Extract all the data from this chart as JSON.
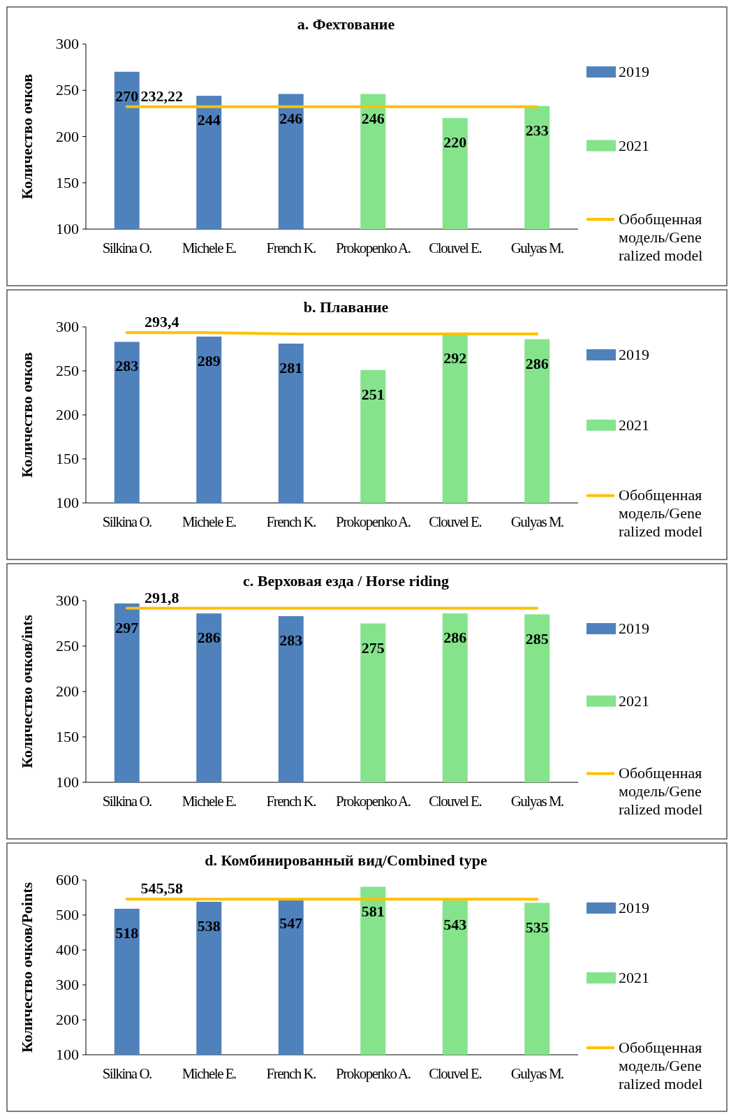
{
  "chart_data": [
    {
      "type": "bar",
      "title": "a. Фехтование",
      "ylabel": "Количество очков",
      "categories": [
        "Silkina O.",
        "Michele E.",
        "French K.",
        "Prokopenko A.",
        "Clouvel E.",
        "Gulyas M."
      ],
      "ylim": [
        100,
        300
      ],
      "yticks": [
        100,
        150,
        200,
        250,
        300
      ],
      "legend": "right",
      "series": [
        {
          "name": "2019",
          "color": "#4f81bd",
          "values": [
            270,
            244,
            246,
            null,
            null,
            null
          ],
          "value_labels": [
            "270",
            "244",
            "246",
            null,
            null,
            null
          ]
        },
        {
          "name": "2021",
          "color": "#85e38c",
          "values": [
            null,
            null,
            null,
            246,
            220,
            233
          ],
          "value_labels": [
            null,
            null,
            null,
            "246",
            "220",
            "233"
          ]
        },
        {
          "name": "Обобщенная модель/Generalized model",
          "type": "line",
          "color": "#ffc000",
          "values": [
            232.22,
            232.22,
            232.22,
            232.22,
            232.22,
            232.22
          ],
          "value_labels": [
            "232,22",
            null,
            null,
            null,
            null,
            null
          ]
        }
      ]
    },
    {
      "type": "bar",
      "title": "b. Плавание",
      "ylabel": "Количество очков",
      "categories": [
        "Silkina O.",
        "Michele E.",
        "French K.",
        "Prokopenko A.",
        "Clouvel E.",
        "Gulyas M."
      ],
      "ylim": [
        100,
        300
      ],
      "yticks": [
        100,
        150,
        200,
        250,
        300
      ],
      "legend": "right",
      "series": [
        {
          "name": "2019",
          "color": "#4f81bd",
          "values": [
            283,
            289,
            281,
            null,
            null,
            null
          ],
          "value_labels": [
            "283",
            "289",
            "281",
            null,
            null,
            null
          ]
        },
        {
          "name": "2021",
          "color": "#85e38c",
          "values": [
            null,
            null,
            null,
            251,
            292,
            286
          ],
          "value_labels": [
            null,
            null,
            null,
            "251",
            "292",
            "286"
          ]
        },
        {
          "name": "Обобщенная модель/Generalized model",
          "type": "line",
          "color": "#ffc000",
          "values": [
            293.4,
            293.4,
            292,
            292,
            292,
            292
          ],
          "value_labels": [
            "293,4",
            null,
            null,
            null,
            null,
            null
          ]
        }
      ]
    },
    {
      "type": "bar",
      "title": "c. Верховая езда / Horse riding",
      "ylabel": "Количество очков/ints",
      "categories": [
        "Silkina O.",
        "Michele E.",
        "French K.",
        "Prokopenko A.",
        "Clouvel E.",
        "Gulyas M."
      ],
      "ylim": [
        100,
        300
      ],
      "yticks": [
        100,
        150,
        200,
        250,
        300
      ],
      "legend": "right",
      "series": [
        {
          "name": "2019",
          "color": "#4f81bd",
          "values": [
            297,
            286,
            283,
            null,
            null,
            null
          ],
          "value_labels": [
            "297",
            "286",
            "283",
            null,
            null,
            null
          ]
        },
        {
          "name": "2021",
          "color": "#85e38c",
          "values": [
            null,
            null,
            null,
            275,
            286,
            285
          ],
          "value_labels": [
            null,
            null,
            null,
            "275",
            "286",
            "285"
          ]
        },
        {
          "name": "Обобщенная модель/Generalized model",
          "type": "line",
          "color": "#ffc000",
          "values": [
            291.8,
            291.8,
            291.8,
            291.8,
            291.8,
            291.8
          ],
          "value_labels": [
            "291,8",
            null,
            null,
            null,
            null,
            null
          ]
        }
      ]
    },
    {
      "type": "bar",
      "title": "d. Комбинированный  вид/Combined type",
      "ylabel": "Количество очков/Points",
      "categories": [
        "Silkina O.",
        "Michele E.",
        "French K.",
        "Prokopenko A.",
        "Clouvel E.",
        "Gulyas M."
      ],
      "ylim": [
        100,
        600
      ],
      "yticks": [
        100,
        200,
        300,
        400,
        500,
        600
      ],
      "legend": "right",
      "series": [
        {
          "name": "2019",
          "color": "#4f81bd",
          "values": [
            518,
            538,
            547,
            null,
            null,
            null
          ],
          "value_labels": [
            "518",
            "538",
            "547",
            null,
            null,
            null
          ]
        },
        {
          "name": "2021",
          "color": "#85e38c",
          "values": [
            null,
            null,
            null,
            581,
            543,
            535
          ],
          "value_labels": [
            null,
            null,
            null,
            "581",
            "543",
            "535"
          ]
        },
        {
          "name": "Обобщенная модель/Generalized model",
          "type": "line",
          "color": "#ffc000",
          "values": [
            545.58,
            545.58,
            545.58,
            545.58,
            545.58,
            545.58
          ],
          "value_labels": [
            "545,58",
            null,
            null,
            null,
            null,
            null
          ]
        }
      ]
    }
  ]
}
